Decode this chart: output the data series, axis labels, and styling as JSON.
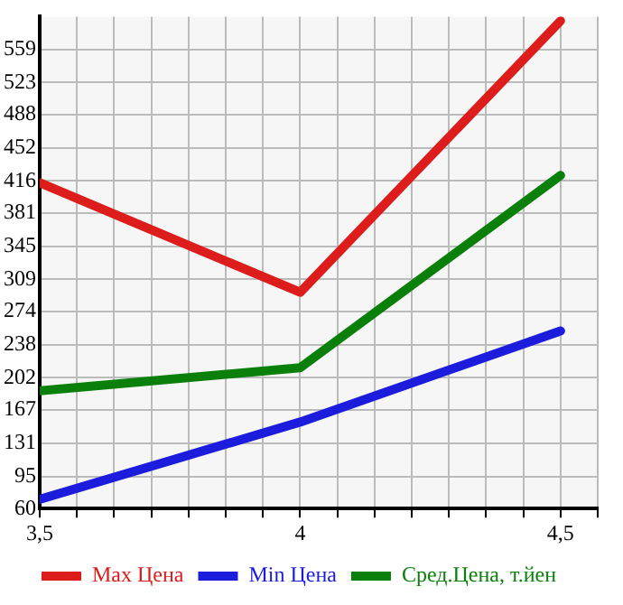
{
  "chart_data": {
    "type": "line",
    "x": [
      3.5,
      4,
      4.5
    ],
    "series": [
      {
        "name": "Max Цена",
        "color": "#dd1c1c",
        "values": [
          414,
          295,
          590
        ]
      },
      {
        "name": "Min Цена",
        "color": "#1c1cdd",
        "values": [
          70,
          154,
          253
        ]
      },
      {
        "name": "Сред.Цена, т.йен",
        "color": "#0a800a",
        "values": [
          188,
          213,
          422
        ]
      }
    ],
    "xlim": [
      3.5,
      4.5714
    ],
    "xticks": [
      {
        "value": 3.5,
        "label": "3,5"
      },
      {
        "value": 3.5714,
        "label": null
      },
      {
        "value": 3.6429,
        "label": null
      },
      {
        "value": 3.7143,
        "label": null
      },
      {
        "value": 3.7857,
        "label": null
      },
      {
        "value": 3.8571,
        "label": null
      },
      {
        "value": 3.9286,
        "label": null
      },
      {
        "value": 4,
        "label": "4"
      },
      {
        "value": 4.0714,
        "label": null
      },
      {
        "value": 4.1429,
        "label": null
      },
      {
        "value": 4.2143,
        "label": null
      },
      {
        "value": 4.2857,
        "label": null
      },
      {
        "value": 4.3571,
        "label": null
      },
      {
        "value": 4.4286,
        "label": null
      },
      {
        "value": 4.5,
        "label": "4,5"
      },
      {
        "value": 4.5714,
        "label": null
      }
    ],
    "ylim": [
      60,
      594.6
    ],
    "yticks": [
      60,
      95,
      131,
      167,
      202,
      238,
      274,
      309,
      345,
      381,
      416,
      452,
      488,
      523,
      559
    ],
    "grid": true,
    "legend": "bottom",
    "marker": "none",
    "line_style": "solid"
  }
}
